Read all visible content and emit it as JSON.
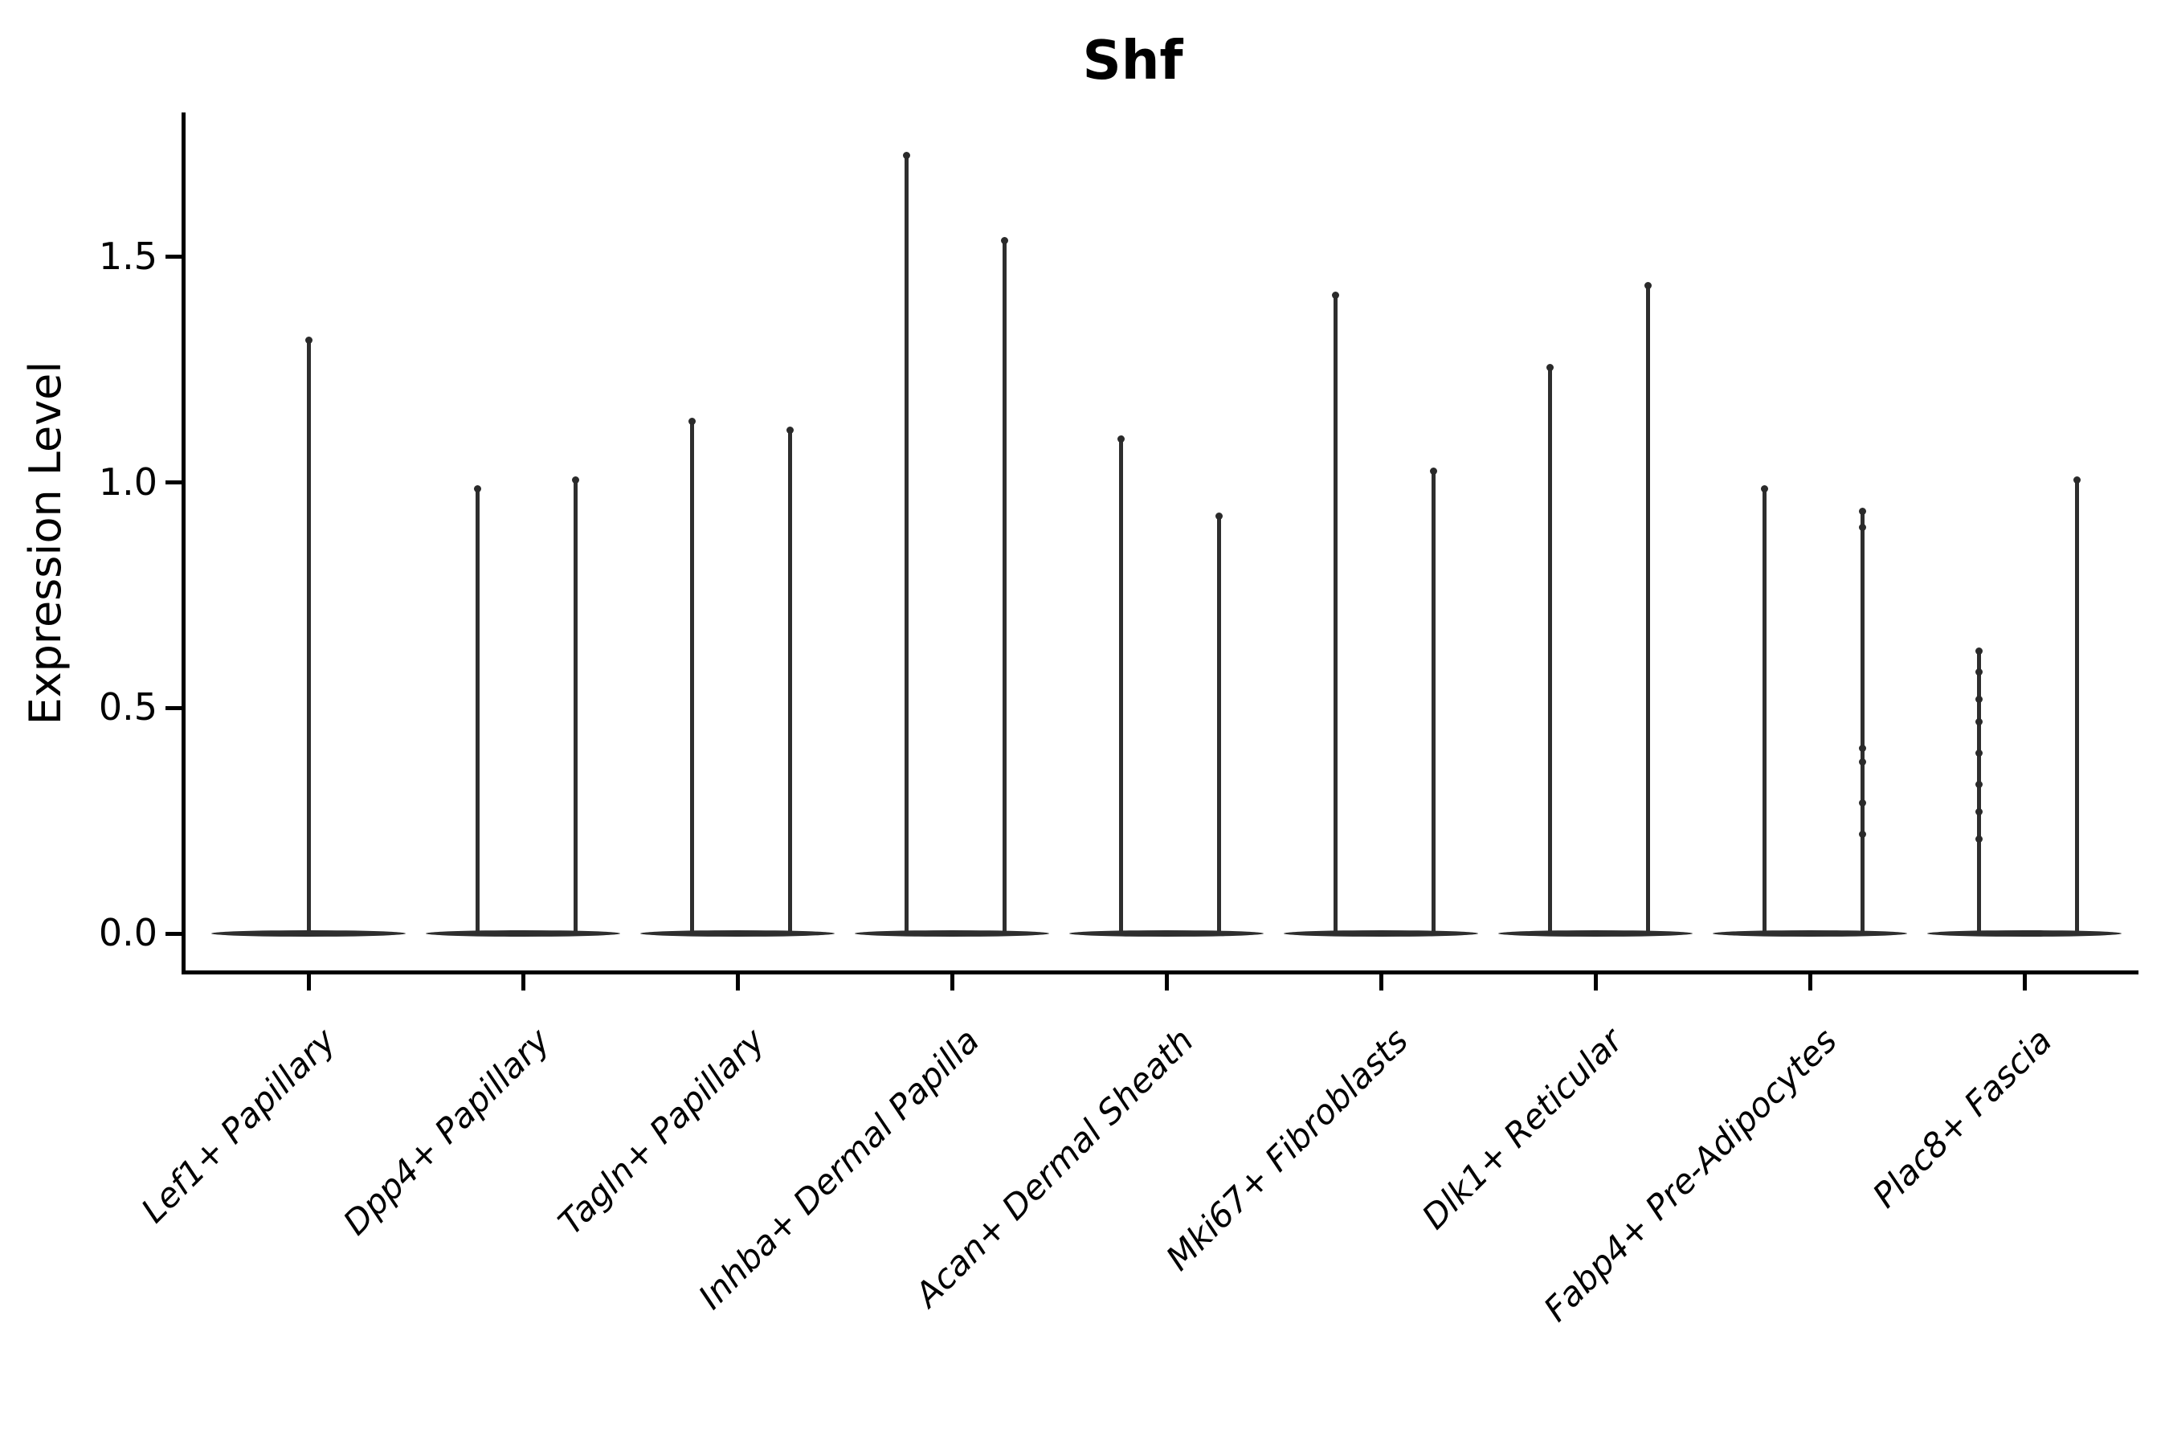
{
  "figure": {
    "title": "Shf",
    "ylabel": "Expression Level"
  },
  "chart_data": {
    "type": "violin",
    "title": "Shf",
    "xlabel": "",
    "ylabel": "Expression Level",
    "ylim": [
      -0.085,
      1.82
    ],
    "yticks": [
      0.0,
      0.5,
      1.0,
      1.5
    ],
    "grid": false,
    "legend": null,
    "categories": [
      "Lef1+ Papillary",
      "Dpp4+ Papillary",
      "Tagln+ Papillary",
      "Inhba+ Dermal Papilla",
      "Acan+ Dermal Sheath",
      "Mki67+ Fibroblasts",
      "Dlk1+ Reticular",
      "Fabp4+ Pre-Adipocytes",
      "Plac8+ Fascia"
    ],
    "base_halfwidth_units": 0.455,
    "violins": [
      {
        "category": "Lef1+ Papillary",
        "spikes": [
          {
            "offset_units": 0.0,
            "max": 1.32,
            "dots": []
          }
        ]
      },
      {
        "category": "Dpp4+ Papillary",
        "spikes": [
          {
            "offset_units": -0.213,
            "max": 0.99,
            "dots": []
          },
          {
            "offset_units": 0.247,
            "max": 1.01,
            "dots": []
          }
        ]
      },
      {
        "category": "Tagln+ Papillary",
        "spikes": [
          {
            "offset_units": -0.213,
            "max": 1.14,
            "dots": []
          },
          {
            "offset_units": 0.247,
            "max": 1.12,
            "dots": []
          }
        ]
      },
      {
        "category": "Inhba+ Dermal Papilla",
        "spikes": [
          {
            "offset_units": -0.213,
            "max": 1.73,
            "dots": []
          },
          {
            "offset_units": 0.247,
            "max": 1.54,
            "dots": []
          }
        ]
      },
      {
        "category": "Acan+ Dermal Sheath",
        "spikes": [
          {
            "offset_units": -0.213,
            "max": 1.1,
            "dots": []
          },
          {
            "offset_units": 0.247,
            "max": 0.93,
            "dots": []
          }
        ]
      },
      {
        "category": "Mki67+ Fibroblasts",
        "spikes": [
          {
            "offset_units": -0.213,
            "max": 1.42,
            "dots": []
          },
          {
            "offset_units": 0.247,
            "max": 1.03,
            "dots": []
          }
        ]
      },
      {
        "category": "Dlk1+ Reticular",
        "spikes": [
          {
            "offset_units": -0.213,
            "max": 1.26,
            "dots": []
          },
          {
            "offset_units": 0.247,
            "max": 1.44,
            "dots": []
          }
        ]
      },
      {
        "category": "Fabp4+ Pre-Adipocytes",
        "spikes": [
          {
            "offset_units": -0.213,
            "max": 0.99,
            "dots": []
          },
          {
            "offset_units": 0.247,
            "max": 0.94,
            "dots": [
              0.9,
              0.41,
              0.38,
              0.29,
              0.22
            ]
          }
        ]
      },
      {
        "category": "Plac8+ Fascia",
        "spikes": [
          {
            "offset_units": -0.213,
            "max": 0.63,
            "dots": [
              0.58,
              0.52,
              0.47,
              0.4,
              0.33,
              0.27,
              0.21
            ]
          },
          {
            "offset_units": 0.247,
            "max": 1.01,
            "dots": []
          }
        ]
      }
    ]
  }
}
